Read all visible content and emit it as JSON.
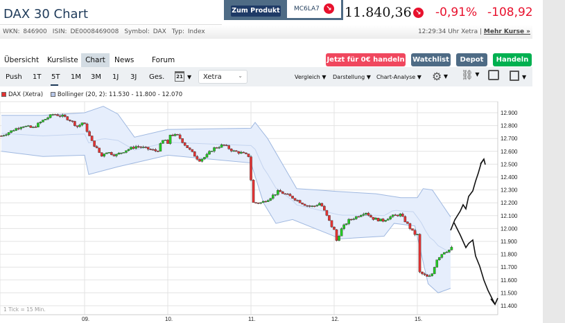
{
  "header": {
    "title": "DAX 30 Chart",
    "wkn": "WKN: 846900",
    "isin": "ISIN: DE0008469008",
    "symbol": "Symbol: DAX",
    "type": "Typ: Index",
    "product_button": "Zum Produkt",
    "product_code": "MC6LA7",
    "price": "11.840,36",
    "change_pct": "-0,91%",
    "change_abs": "-108,92",
    "quote_time": "12:29:34 Uhr Xetra |",
    "more_quotes": "Mehr Kurse »",
    "trend_icon": "arrow-down-right-icon"
  },
  "tabs": [
    {
      "label": "Übersicht"
    },
    {
      "label": "Kursliste"
    },
    {
      "label": "Chart",
      "active": true
    },
    {
      "label": "News"
    },
    {
      "label": "Forum"
    }
  ],
  "actions": {
    "trade_free": "Jetzt für 0€ handeln",
    "watchlist": "Watchlist",
    "depot": "Depot",
    "trade": "Handeln"
  },
  "colors": {
    "red": "#e8112d",
    "trade_free": "#f0475e",
    "slate": "#4e6b85",
    "green": "#00b050",
    "candle_up": "#22cc22",
    "candle_down": "#e53333",
    "band_fill": "#e6eefc",
    "band_line": "#9fb8e0"
  },
  "toolbar": {
    "ranges": [
      "Push",
      "1T",
      "5T",
      "1M",
      "3M",
      "1J",
      "3J",
      "Ges."
    ],
    "active_range": "5T",
    "calendar_day": "21",
    "exchange": "Xetra",
    "compare": "Vergleich",
    "display": "Darstellung",
    "analysis": "Chart-Analyse"
  },
  "chart_data": {
    "type": "candlestick",
    "legend": {
      "series": "DAX (Xetra)",
      "indicator": "Bollinger (20, 2): 11.530 - 11.800 - 12.070"
    },
    "tick_note": "1 Tick = 15 Min.",
    "x_ticks": [
      {
        "label": "09.",
        "t": 1
      },
      {
        "label": "10.",
        "t": 2
      },
      {
        "label": "11.",
        "t": 3
      },
      {
        "label": "12.",
        "t": 4
      },
      {
        "label": "15.",
        "t": 5
      }
    ],
    "y_ticks": [
      "12.900",
      "12.800",
      "12.700",
      "12.600",
      "12.500",
      "12.400",
      "12.300",
      "12.200",
      "12.100",
      "12.000",
      "11.900",
      "11.800",
      "11.700",
      "11.600",
      "11.500",
      "11.400"
    ],
    "ylim": [
      11400,
      12900
    ],
    "close_path": [
      [
        0,
        12720
      ],
      [
        0.125,
        12760
      ],
      [
        0.25,
        12800
      ],
      [
        0.375,
        12780
      ],
      [
        0.5,
        12840
      ],
      [
        0.625,
        12890
      ],
      [
        0.75,
        12870
      ],
      [
        0.833,
        12840
      ],
      [
        0.917,
        12790
      ],
      [
        0.983,
        12830
      ],
      [
        1.017,
        12780
      ],
      [
        1.083,
        12680
      ],
      [
        1.167,
        12600
      ],
      [
        1.208,
        12560
      ],
      [
        1.25,
        12600
      ],
      [
        1.375,
        12570
      ],
      [
        1.5,
        12610
      ],
      [
        1.625,
        12640
      ],
      [
        1.75,
        12620
      ],
      [
        1.875,
        12600
      ],
      [
        1.933,
        12680
      ],
      [
        1.983,
        12690
      ],
      [
        2.0,
        12650
      ],
      [
        2.025,
        12730
      ],
      [
        2.125,
        12720
      ],
      [
        2.208,
        12650
      ],
      [
        2.292,
        12590
      ],
      [
        2.375,
        12530
      ],
      [
        2.458,
        12560
      ],
      [
        2.542,
        12620
      ],
      [
        2.667,
        12650
      ],
      [
        2.792,
        12600
      ],
      [
        2.875,
        12590
      ],
      [
        2.983,
        12560
      ],
      [
        3.017,
        12200
      ],
      [
        3.125,
        12200
      ],
      [
        3.208,
        12230
      ],
      [
        3.333,
        12290
      ],
      [
        3.5,
        12240
      ],
      [
        3.667,
        12180
      ],
      [
        3.75,
        12170
      ],
      [
        3.833,
        12200
      ],
      [
        3.917,
        12090
      ],
      [
        3.983,
        12000
      ],
      [
        4.008,
        11980
      ],
      [
        4.025,
        11900
      ],
      [
        4.083,
        11990
      ],
      [
        4.167,
        12060
      ],
      [
        4.292,
        12100
      ],
      [
        4.375,
        12130
      ],
      [
        4.458,
        12080
      ],
      [
        4.583,
        12060
      ],
      [
        4.667,
        12090
      ],
      [
        4.792,
        12110
      ],
      [
        4.875,
        12040
      ],
      [
        4.958,
        11960
      ],
      [
        5.0,
        11950
      ],
      [
        5.025,
        11660
      ],
      [
        5.125,
        11620
      ],
      [
        5.167,
        11630
      ],
      [
        5.233,
        11760
      ],
      [
        5.317,
        11820
      ],
      [
        5.375,
        11830
      ],
      [
        5.417,
        11850
      ]
    ],
    "bollinger_upper": [
      [
        0,
        12880
      ],
      [
        0.5,
        12880
      ],
      [
        1.0,
        12900
      ],
      [
        1.225,
        12950
      ],
      [
        1.4,
        12890
      ],
      [
        1.6,
        12710
      ],
      [
        2.0,
        12770
      ],
      [
        2.5,
        12775
      ],
      [
        3.0,
        12780
      ],
      [
        3.05,
        12825
      ],
      [
        3.2,
        12700
      ],
      [
        3.55,
        12310
      ],
      [
        3.8,
        12300
      ],
      [
        4.0,
        12290
      ],
      [
        4.5,
        12270
      ],
      [
        4.8,
        12240
      ],
      [
        5.0,
        12240
      ],
      [
        5.07,
        12310
      ],
      [
        5.18,
        12300
      ],
      [
        5.4,
        12090
      ]
    ],
    "bollinger_lower": [
      [
        0,
        12600
      ],
      [
        0.5,
        12560
      ],
      [
        1.0,
        12570
      ],
      [
        1.05,
        12420
      ],
      [
        1.4,
        12480
      ],
      [
        1.8,
        12540
      ],
      [
        2.0,
        12570
      ],
      [
        2.5,
        12540
      ],
      [
        3.0,
        12510
      ],
      [
        3.15,
        12200
      ],
      [
        3.3,
        12040
      ],
      [
        3.5,
        12070
      ],
      [
        4.08,
        11920
      ],
      [
        4.6,
        11940
      ],
      [
        4.72,
        12040
      ],
      [
        4.97,
        12020
      ],
      [
        5.13,
        11570
      ],
      [
        5.25,
        11500
      ],
      [
        5.4,
        11535
      ]
    ]
  }
}
